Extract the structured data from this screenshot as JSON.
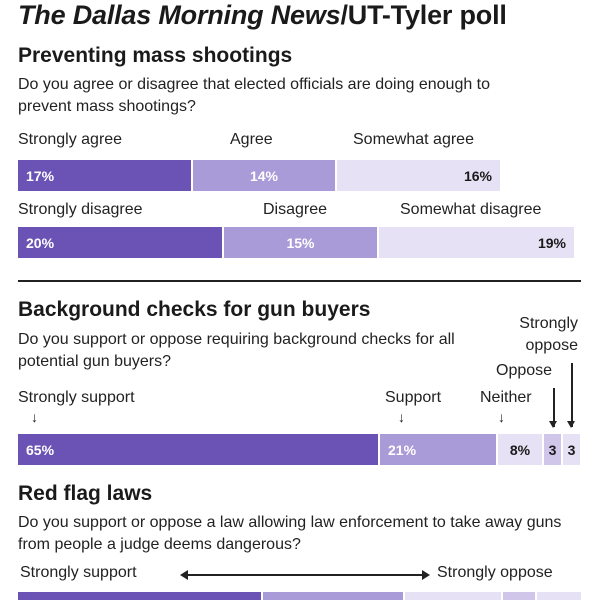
{
  "header": {
    "title_italic": "The Dallas Morning News",
    "title_rest": "/UT-Tyler poll"
  },
  "colors": {
    "dark_purple": "#6a53b5",
    "mid_purple": "#a99ad8",
    "light_purple": "#e6e1f4",
    "pale_purple": "#cfc6ea",
    "text": "#1a1a1a"
  },
  "chart_data": [
    {
      "type": "bar",
      "title": "Preventing mass shootings",
      "subtitle": "Do you agree or disagree that elected officials are doing enough to prevent mass shootings?",
      "rows": [
        {
          "categories": [
            "Strongly agree",
            "Agree",
            "Somewhat agree"
          ],
          "values": [
            17,
            14,
            16
          ],
          "labels": [
            "17%",
            "14%",
            "16%"
          ]
        },
        {
          "categories": [
            "Strongly disagree",
            "Disagree",
            "Somewhat disagree"
          ],
          "values": [
            20,
            15,
            19
          ],
          "labels": [
            "20%",
            "15%",
            "19%"
          ]
        }
      ]
    },
    {
      "type": "bar",
      "title": "Background checks for gun buyers",
      "subtitle": "Do you support or oppose requiring background checks for all potential gun buyers?",
      "categories": [
        "Strongly support",
        "Support",
        "Neither",
        "Oppose",
        "Strongly oppose"
      ],
      "category_labels": [
        "Strongly support",
        "Support",
        "Neither",
        "Oppose",
        "Strongly\noppose"
      ],
      "values": [
        65,
        21,
        8,
        3,
        3
      ],
      "labels": [
        "65%",
        "21%",
        "8%",
        "3",
        "3"
      ]
    },
    {
      "type": "bar",
      "title": "Red flag laws",
      "subtitle": "Do you support or oppose a law allowing law enforcement to take away guns from people a judge deems dangerous?",
      "scale_left": "Strongly support",
      "scale_right": "Strongly oppose"
    }
  ]
}
